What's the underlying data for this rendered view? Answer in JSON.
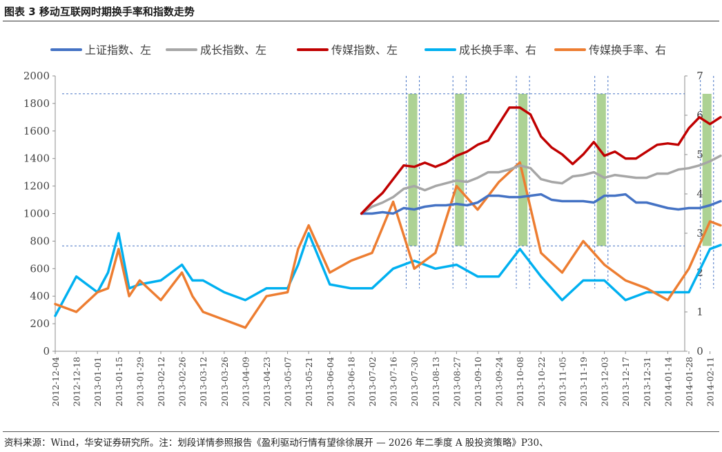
{
  "title": "图表 3 移动互联网时期换手率和指数走势",
  "source": "资料来源：Wind，华安证券研究所。注：划段详情参照报告《盈利驱动行情有望徐徐展开 — 2026 年二季度 A 股投资策略》P30、",
  "chart_data": {
    "type": "line",
    "x_ticks": [
      "2012-12-04",
      "2012-12-18",
      "2013-01-01",
      "2013-01-15",
      "2013-01-29",
      "2013-02-12",
      "2013-02-26",
      "2013-03-12",
      "2013-03-26",
      "2013-04-09",
      "2013-04-23",
      "2013-05-07",
      "2013-05-21",
      "2013-06-04",
      "2013-06-18",
      "2013-07-02",
      "2013-07-16",
      "2013-07-30",
      "2013-08-13",
      "2013-08-27",
      "2013-09-10",
      "2013-09-24",
      "2013-10-08",
      "2013-10-22",
      "2013-11-05",
      "2013-11-19",
      "2013-12-03",
      "2013-12-17",
      "2013-12-31",
      "2014-01-14",
      "2014-01-28",
      "2014-02-11"
    ],
    "y_left": {
      "min": 0,
      "max": 2000,
      "ticks": [
        0,
        200,
        400,
        600,
        800,
        1000,
        1200,
        1400,
        1600,
        1800,
        2000
      ]
    },
    "y_right": {
      "min": 0,
      "max": 7,
      "ticks": [
        0,
        1,
        2,
        3,
        4,
        5,
        6,
        7
      ]
    },
    "legend_position": "top",
    "series": [
      {
        "name": "上证指数、左",
        "axis": "left",
        "color": "#4472C4",
        "width": 3.5,
        "x": [
          "2013-06-25",
          "2013-07-02",
          "2013-07-09",
          "2013-07-16",
          "2013-07-23",
          "2013-07-30",
          "2013-08-06",
          "2013-08-13",
          "2013-08-20",
          "2013-08-27",
          "2013-09-03",
          "2013-09-10",
          "2013-09-17",
          "2013-09-24",
          "2013-10-01",
          "2013-10-08",
          "2013-10-15",
          "2013-10-22",
          "2013-10-29",
          "2013-11-05",
          "2013-11-12",
          "2013-11-19",
          "2013-11-26",
          "2013-12-03",
          "2013-12-10",
          "2013-12-17",
          "2013-12-24",
          "2013-12-31",
          "2014-01-07",
          "2014-01-14",
          "2014-01-21",
          "2014-01-28",
          "2014-02-04",
          "2014-02-11",
          "2014-02-18"
        ],
        "y": [
          1000,
          1000,
          1010,
          1000,
          1040,
          1030,
          1050,
          1060,
          1060,
          1070,
          1060,
          1080,
          1130,
          1130,
          1120,
          1120,
          1130,
          1140,
          1100,
          1090,
          1090,
          1090,
          1080,
          1130,
          1130,
          1140,
          1080,
          1080,
          1060,
          1040,
          1030,
          1040,
          1040,
          1060,
          1090
        ]
      },
      {
        "name": "成长指数、左",
        "axis": "left",
        "color": "#A6A6A6",
        "width": 3.5,
        "x": [
          "2013-06-25",
          "2013-07-02",
          "2013-07-09",
          "2013-07-16",
          "2013-07-23",
          "2013-07-30",
          "2013-08-06",
          "2013-08-13",
          "2013-08-20",
          "2013-08-27",
          "2013-09-03",
          "2013-09-10",
          "2013-09-17",
          "2013-09-24",
          "2013-10-01",
          "2013-10-08",
          "2013-10-15",
          "2013-10-22",
          "2013-10-29",
          "2013-11-05",
          "2013-11-12",
          "2013-11-19",
          "2013-11-26",
          "2013-12-03",
          "2013-12-10",
          "2013-12-17",
          "2013-12-24",
          "2013-12-31",
          "2014-01-07",
          "2014-01-14",
          "2014-01-21",
          "2014-01-28",
          "2014-02-04",
          "2014-02-11",
          "2014-02-18"
        ],
        "y": [
          1000,
          1050,
          1080,
          1120,
          1180,
          1200,
          1170,
          1200,
          1220,
          1240,
          1230,
          1260,
          1300,
          1300,
          1320,
          1350,
          1330,
          1250,
          1230,
          1220,
          1270,
          1280,
          1300,
          1260,
          1280,
          1270,
          1260,
          1260,
          1290,
          1290,
          1320,
          1330,
          1350,
          1380,
          1420
        ]
      },
      {
        "name": "传媒指数、左",
        "axis": "left",
        "color": "#C00000",
        "width": 3.5,
        "x": [
          "2013-06-25",
          "2013-07-02",
          "2013-07-09",
          "2013-07-16",
          "2013-07-23",
          "2013-07-30",
          "2013-08-06",
          "2013-08-13",
          "2013-08-20",
          "2013-08-27",
          "2013-09-03",
          "2013-09-10",
          "2013-09-17",
          "2013-09-24",
          "2013-10-01",
          "2013-10-08",
          "2013-10-15",
          "2013-10-22",
          "2013-10-29",
          "2013-11-05",
          "2013-11-12",
          "2013-11-19",
          "2013-11-26",
          "2013-12-03",
          "2013-12-10",
          "2013-12-17",
          "2013-12-24",
          "2013-12-31",
          "2014-01-07",
          "2014-01-14",
          "2014-01-21",
          "2014-01-28",
          "2014-02-04",
          "2014-02-11",
          "2014-02-18"
        ],
        "y": [
          1000,
          1080,
          1150,
          1250,
          1350,
          1340,
          1370,
          1340,
          1370,
          1420,
          1450,
          1500,
          1530,
          1650,
          1770,
          1770,
          1720,
          1560,
          1480,
          1430,
          1360,
          1430,
          1520,
          1420,
          1450,
          1400,
          1400,
          1450,
          1500,
          1510,
          1500,
          1620,
          1700,
          1650,
          1700
        ]
      },
      {
        "name": "成长换手率、右",
        "axis": "right",
        "color": "#00B0F0",
        "width": 3.5,
        "x": [
          "2012-12-04",
          "2012-12-18",
          "2013-01-01",
          "2013-01-08",
          "2013-01-15",
          "2013-01-22",
          "2013-01-29",
          "2013-02-12",
          "2013-02-26",
          "2013-03-05",
          "2013-03-12",
          "2013-03-26",
          "2013-04-09",
          "2013-04-23",
          "2013-05-07",
          "2013-05-14",
          "2013-05-21",
          "2013-06-04",
          "2013-06-18",
          "2013-07-02",
          "2013-07-16",
          "2013-07-30",
          "2013-08-13",
          "2013-08-27",
          "2013-09-10",
          "2013-09-24",
          "2013-10-08",
          "2013-10-22",
          "2013-11-05",
          "2013-11-19",
          "2013-12-03",
          "2013-12-17",
          "2013-12-31",
          "2014-01-14",
          "2014-01-28",
          "2014-02-11",
          "2014-02-18"
        ],
        "y": [
          0.9,
          1.9,
          1.5,
          2.0,
          3.0,
          1.6,
          1.7,
          1.8,
          2.2,
          1.8,
          1.8,
          1.5,
          1.3,
          1.6,
          1.6,
          2.2,
          3.0,
          1.7,
          1.6,
          1.6,
          2.1,
          2.3,
          2.1,
          2.2,
          1.9,
          1.9,
          2.6,
          1.9,
          1.3,
          1.8,
          1.8,
          1.3,
          1.5,
          1.5,
          1.5,
          2.6,
          2.7
        ]
      },
      {
        "name": "传媒换手率、右",
        "axis": "right",
        "color": "#ED7D31",
        "width": 3.5,
        "x": [
          "2012-12-04",
          "2012-12-18",
          "2013-01-01",
          "2013-01-08",
          "2013-01-15",
          "2013-01-22",
          "2013-01-29",
          "2013-02-12",
          "2013-02-26",
          "2013-03-05",
          "2013-03-12",
          "2013-03-26",
          "2013-04-09",
          "2013-04-23",
          "2013-05-07",
          "2013-05-14",
          "2013-05-21",
          "2013-06-04",
          "2013-06-18",
          "2013-07-02",
          "2013-07-16",
          "2013-07-30",
          "2013-08-13",
          "2013-08-27",
          "2013-09-10",
          "2013-09-24",
          "2013-10-08",
          "2013-10-22",
          "2013-11-05",
          "2013-11-19",
          "2013-12-03",
          "2013-12-17",
          "2013-12-31",
          "2014-01-14",
          "2014-01-28",
          "2014-02-11",
          "2014-02-18"
        ],
        "y": [
          1.2,
          1.0,
          1.5,
          1.6,
          2.6,
          1.4,
          1.8,
          1.3,
          2.0,
          1.4,
          1.0,
          0.8,
          0.6,
          1.4,
          1.5,
          2.6,
          3.2,
          2.0,
          2.3,
          2.5,
          3.8,
          2.1,
          2.5,
          4.2,
          3.6,
          4.3,
          4.8,
          2.5,
          2.0,
          2.8,
          2.2,
          1.8,
          1.6,
          1.3,
          2.1,
          3.3,
          3.2
        ]
      }
    ],
    "shaded_periods": [
      [
        "2013-07-26",
        "2013-08-01"
      ],
      [
        "2013-08-26",
        "2013-09-01"
      ],
      [
        "2013-10-07",
        "2013-10-13"
      ],
      [
        "2013-11-28",
        "2013-12-04"
      ],
      [
        "2014-02-06",
        "2014-02-12"
      ]
    ],
    "reference_lines_left": [
      1870,
      765
    ]
  }
}
